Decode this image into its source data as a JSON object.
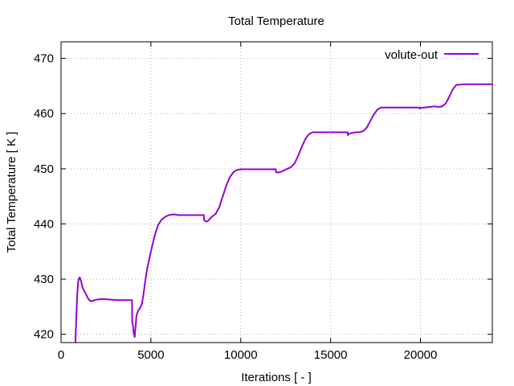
{
  "chart_data": {
    "type": "line",
    "title": "Total Temperature",
    "xlabel": "Iterations [ - ]",
    "ylabel": "Total Temperature [ K ]",
    "xlim": [
      0,
      24000
    ],
    "ylim": [
      418.5,
      473
    ],
    "xticks": [
      0,
      5000,
      10000,
      15000,
      20000
    ],
    "yticks": [
      420,
      430,
      440,
      450,
      460,
      470
    ],
    "grid": true,
    "legend_position": "top-right",
    "series": [
      {
        "name": "volute-out",
        "color": "#9400d3",
        "x": [
          800,
          850,
          900,
          950,
          1000,
          1050,
          1100,
          1200,
          1300,
          1400,
          1500,
          1600,
          1700,
          1800,
          2000,
          2300,
          2700,
          3200,
          3600,
          3950,
          3960,
          3980,
          4000,
          4050,
          4100,
          4150,
          4200,
          4300,
          4400,
          4500,
          4600,
          4700,
          4800,
          5000,
          5200,
          5400,
          5600,
          5800,
          6000,
          6200,
          6400,
          6500,
          7000,
          7500,
          7950,
          7960,
          8000,
          8100,
          8200,
          8300,
          8400,
          8600,
          8800,
          9000,
          9200,
          9400,
          9600,
          9800,
          10000,
          10500,
          11000,
          11500,
          11950,
          11960,
          12000,
          12200,
          12400,
          12600,
          12800,
          13000,
          13200,
          13400,
          13600,
          13800,
          14000,
          14500,
          15000,
          15500,
          15950,
          15960,
          16000,
          16200,
          16400,
          16600,
          16800,
          17000,
          17200,
          17400,
          17600,
          17800,
          18000,
          18500,
          19000,
          19500,
          19950,
          19960,
          20000,
          20500,
          20800,
          21000,
          21200,
          21400,
          21600,
          21800,
          22000,
          22500,
          23000,
          23500,
          24000
        ],
        "y": [
          418.5,
          423,
          427,
          429.5,
          430.2,
          430.3,
          429.8,
          428.5,
          427.8,
          427.2,
          426.5,
          426.1,
          426.0,
          426.1,
          426.3,
          426.4,
          426.3,
          426.2,
          426.2,
          426.2,
          422.2,
          422.0,
          421.6,
          420.2,
          419.5,
          421.5,
          423.5,
          424.3,
          424.8,
          425.5,
          427.5,
          430.0,
          432.0,
          435.0,
          437.8,
          439.8,
          440.8,
          441.3,
          441.6,
          441.7,
          441.7,
          441.6,
          441.6,
          441.6,
          441.6,
          440.7,
          440.6,
          440.4,
          440.6,
          441.0,
          441.3,
          441.8,
          443.0,
          445.0,
          447.0,
          448.5,
          449.4,
          449.8,
          449.9,
          449.9,
          449.9,
          449.9,
          449.9,
          449.4,
          449.3,
          449.4,
          449.7,
          450.0,
          450.3,
          451.0,
          452.4,
          454.0,
          455.4,
          456.3,
          456.6,
          456.6,
          456.6,
          456.6,
          456.6,
          456.1,
          456.3,
          456.5,
          456.6,
          456.6,
          456.8,
          457.4,
          458.6,
          459.8,
          460.7,
          461.1,
          461.1,
          461.1,
          461.1,
          461.1,
          461.1,
          460.9,
          461.0,
          461.2,
          461.3,
          461.2,
          461.3,
          461.8,
          463.0,
          464.4,
          465.2,
          465.3,
          465.3,
          465.3,
          465.3
        ]
      }
    ]
  }
}
